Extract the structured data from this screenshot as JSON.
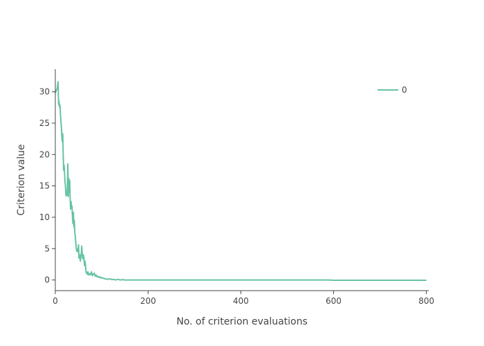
{
  "chart_data": {
    "type": "line",
    "title": "",
    "xlabel": "No. of criterion evaluations",
    "ylabel": "Criterion value",
    "xlim": [
      0,
      805
    ],
    "ylim": [
      -1.7,
      33.6
    ],
    "xticks": [
      0,
      200,
      400,
      600,
      800
    ],
    "yticks": [
      0,
      5,
      10,
      15,
      20,
      25,
      30
    ],
    "grid": false,
    "legend_position": "top-right",
    "colors": {
      "series": "#66c2a5",
      "axis": "#444444"
    },
    "series": [
      {
        "name": "0",
        "color": "#66c2a5",
        "x": [
          0,
          2,
          4,
          6,
          7,
          8,
          9,
          10,
          11,
          12,
          13,
          14,
          15,
          16,
          17,
          18,
          19,
          20,
          21,
          22,
          23,
          24,
          25,
          26,
          27,
          28,
          29,
          30,
          31,
          32,
          33,
          34,
          35,
          36,
          37,
          38,
          39,
          40,
          41,
          42,
          43,
          44,
          45,
          46,
          47,
          48,
          49,
          50,
          51,
          52,
          53,
          54,
          55,
          56,
          57,
          58,
          59,
          60,
          61,
          62,
          63,
          64,
          65,
          66,
          67,
          68,
          69,
          70,
          72,
          74,
          76,
          78,
          80,
          82,
          84,
          86,
          88,
          90,
          92,
          94,
          96,
          98,
          100,
          103,
          106,
          110,
          114,
          118,
          122,
          126,
          130,
          135,
          140,
          145,
          150,
          160,
          170,
          180,
          200,
          250,
          300,
          400,
          500,
          590,
          600,
          700,
          800
        ],
        "y": [
          29.8,
          30.2,
          30.5,
          31.6,
          28.0,
          28.5,
          27.6,
          27.9,
          26.5,
          25.3,
          24.5,
          23.0,
          22.1,
          23.3,
          20.0,
          17.5,
          18.3,
          17.0,
          15.5,
          14.8,
          13.4,
          14.0,
          13.5,
          14.5,
          18.5,
          13.3,
          16.2,
          14.0,
          15.9,
          13.0,
          11.3,
          12.5,
          11.5,
          11.8,
          10.0,
          9.0,
          10.8,
          8.5,
          9.5,
          7.5,
          7.0,
          6.0,
          5.2,
          4.6,
          4.9,
          4.5,
          4.8,
          5.6,
          3.5,
          4.0,
          3.5,
          3.0,
          3.8,
          4.3,
          5.4,
          4.1,
          3.4,
          4.0,
          3.9,
          3.2,
          2.3,
          3.0,
          2.5,
          1.5,
          1.1,
          1.2,
          0.9,
          1.3,
          0.8,
          1.0,
          0.8,
          1.3,
          0.7,
          0.9,
          1.1,
          0.6,
          0.8,
          0.5,
          0.6,
          0.4,
          0.5,
          0.3,
          0.4,
          0.3,
          0.2,
          0.15,
          0.1,
          0.2,
          0.05,
          0.1,
          0.0,
          0.1,
          0.0,
          0.05,
          0.0,
          0.0,
          0.0,
          0.0,
          0.0,
          0.0,
          0.0,
          0.0,
          0.0,
          0.0,
          -0.05,
          -0.05,
          -0.05
        ]
      }
    ]
  }
}
